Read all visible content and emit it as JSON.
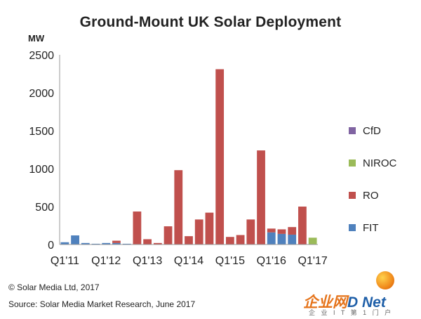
{
  "chart_data": {
    "type": "bar",
    "stacked": true,
    "title": "Ground-Mount UK Solar Deployment",
    "ylabel": "MW",
    "ylim": [
      0,
      2500
    ],
    "yticks": [
      "0",
      "500",
      "1000",
      "1500",
      "2000",
      "2500"
    ],
    "xtick_labels": [
      "Q1'11",
      "Q1'12",
      "Q1'13",
      "Q1'14",
      "Q1'15",
      "Q1'16",
      "Q1'17"
    ],
    "categories": [
      "Q1'11",
      "Q2'11",
      "Q3'11",
      "Q4'11",
      "Q1'12",
      "Q2'12",
      "Q3'12",
      "Q4'12",
      "Q1'13",
      "Q2'13",
      "Q3'13",
      "Q4'13",
      "Q1'14",
      "Q2'14",
      "Q3'14",
      "Q4'14",
      "Q1'15",
      "Q2'15",
      "Q3'15",
      "Q4'15",
      "Q1'16",
      "Q2'16",
      "Q3'16",
      "Q4'16",
      "Q1'17"
    ],
    "series": [
      {
        "name": "FIT",
        "color": "#4f81bd",
        "values": [
          30,
          120,
          20,
          10,
          20,
          20,
          10,
          5,
          0,
          0,
          0,
          0,
          0,
          0,
          0,
          0,
          0,
          0,
          0,
          0,
          160,
          140,
          130,
          0,
          0
        ]
      },
      {
        "name": "RO",
        "color": "#c0504d",
        "values": [
          0,
          0,
          0,
          0,
          0,
          30,
          0,
          430,
          70,
          20,
          240,
          980,
          110,
          330,
          420,
          2310,
          100,
          125,
          330,
          1240,
          50,
          60,
          100,
          500,
          0
        ]
      },
      {
        "name": "NIROC",
        "color": "#9bbb59",
        "values": [
          0,
          0,
          0,
          0,
          0,
          0,
          0,
          0,
          0,
          0,
          0,
          0,
          0,
          0,
          0,
          0,
          0,
          0,
          0,
          0,
          0,
          0,
          0,
          0,
          90
        ]
      },
      {
        "name": "CfD",
        "color": "#8064a2",
        "values": [
          0,
          0,
          0,
          0,
          0,
          0,
          0,
          0,
          0,
          0,
          0,
          0,
          0,
          0,
          0,
          0,
          0,
          0,
          0,
          0,
          0,
          0,
          0,
          0,
          0
        ]
      }
    ],
    "legend": [
      "CfD",
      "NIROC",
      "RO",
      "FIT"
    ],
    "legend_position": "right",
    "grid": false
  },
  "footer": {
    "copyright": "© Solar Media Ltd, 2017",
    "source": "Source: Solar Media Market Research, June 2017"
  },
  "watermark": {
    "logo_left": "企业网",
    "logo_right": "D Net",
    "sub": "企 业 I T 第 1 门 户"
  }
}
